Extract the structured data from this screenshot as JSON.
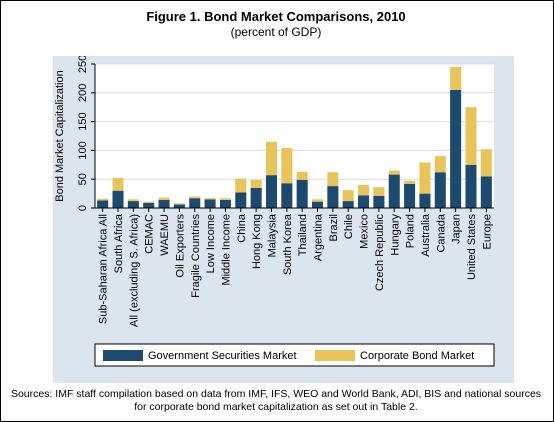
{
  "figure": {
    "title": "Figure 1.  Bond Market Comparisons, 2010",
    "subtitle": "(percent of GDP)",
    "source": "Sources: IMF staff compilation based on data from IMF, IFS, WEO and World Bank, ADI, BIS and national sources for corporate bond market capitalization as set out in Table 2."
  },
  "colors": {
    "panel": "#dbe5ee",
    "government": "#1d4a6e",
    "corporate": "#e8c45b",
    "grid": "#ffffff",
    "axis": "#000000"
  },
  "chart_data": {
    "type": "bar",
    "stacked": true,
    "ylabel": "Bond Market Capitalization",
    "xlabel": "",
    "ylim": [
      0,
      250
    ],
    "yticks": [
      0,
      50,
      100,
      150,
      200,
      250
    ],
    "grid": true,
    "legend_position": "bottom",
    "categories": [
      "Sub-Saharan Africa All",
      "South Africa",
      "All (excluding S. Africa)",
      "CEMAC",
      "WAEMU",
      "Oil Exporters",
      "Fragile Countries",
      "Low Income",
      "Middle Income",
      "China",
      "Hong Kong",
      "Malaysia",
      "South Korea",
      "Thailand",
      "Argentina",
      "Brazil",
      "Chile",
      "Mexico",
      "Czech Republic",
      "Hungary",
      "Poland",
      "Australia",
      "Canada",
      "Japan",
      "United States",
      "Europe"
    ],
    "series": [
      {
        "name": "Government Securities Market",
        "values": [
          13,
          30,
          12,
          9,
          14,
          6,
          17,
          15,
          14,
          27,
          35,
          57,
          43,
          49,
          11,
          38,
          12,
          22,
          21,
          58,
          42,
          25,
          62,
          205,
          75,
          55
        ]
      },
      {
        "name": "Corporate Bond Market",
        "values": [
          3,
          22,
          3,
          2,
          4,
          2,
          3,
          2,
          3,
          24,
          14,
          58,
          61,
          14,
          4,
          24,
          19,
          18,
          15,
          7,
          5,
          54,
          28,
          40,
          100,
          47
        ]
      }
    ]
  }
}
